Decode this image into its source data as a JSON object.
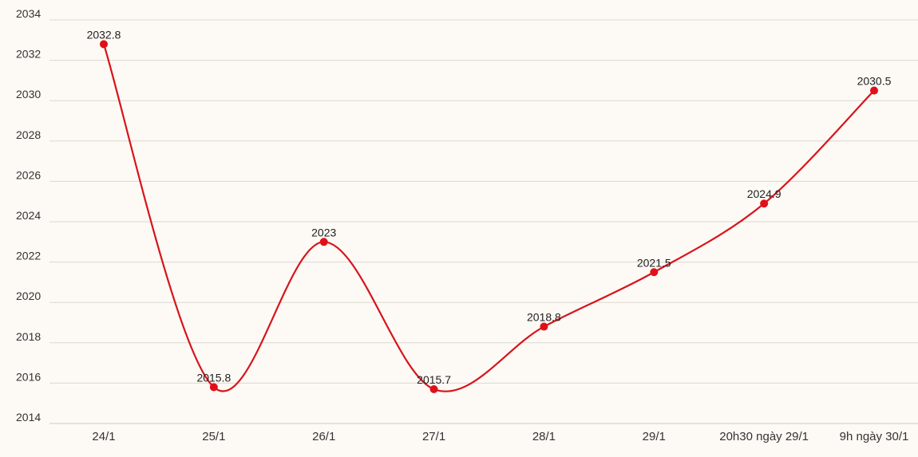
{
  "colors": {
    "background": "#fdf9f5",
    "line": "#d7141a",
    "point": "#e0101a",
    "grid": "#dcd7d2"
  },
  "chart_data": {
    "type": "line",
    "title": "",
    "xlabel": "",
    "ylabel": "",
    "categories": [
      "24/1",
      "25/1",
      "26/1",
      "27/1",
      "28/1",
      "29/1",
      "20h30 ngày 29/1",
      "9h ngày 30/1"
    ],
    "series": [
      {
        "values": [
          2032.8,
          2015.8,
          2023,
          2015.7,
          2018.8,
          2021.5,
          2024.9,
          2030.5
        ],
        "labels": [
          "2032.8",
          "2015.8",
          "2023",
          "2015.7",
          "2018.8",
          "2021.5",
          "2024.9",
          "2030.5"
        ]
      }
    ],
    "ylim": [
      2014,
      2034
    ],
    "yticks": [
      "2014",
      "2016",
      "2018",
      "2020",
      "2022",
      "2024",
      "2026",
      "2028",
      "2030",
      "2032",
      "2034"
    ],
    "grid": true,
    "legend": "none",
    "smooth": true
  }
}
